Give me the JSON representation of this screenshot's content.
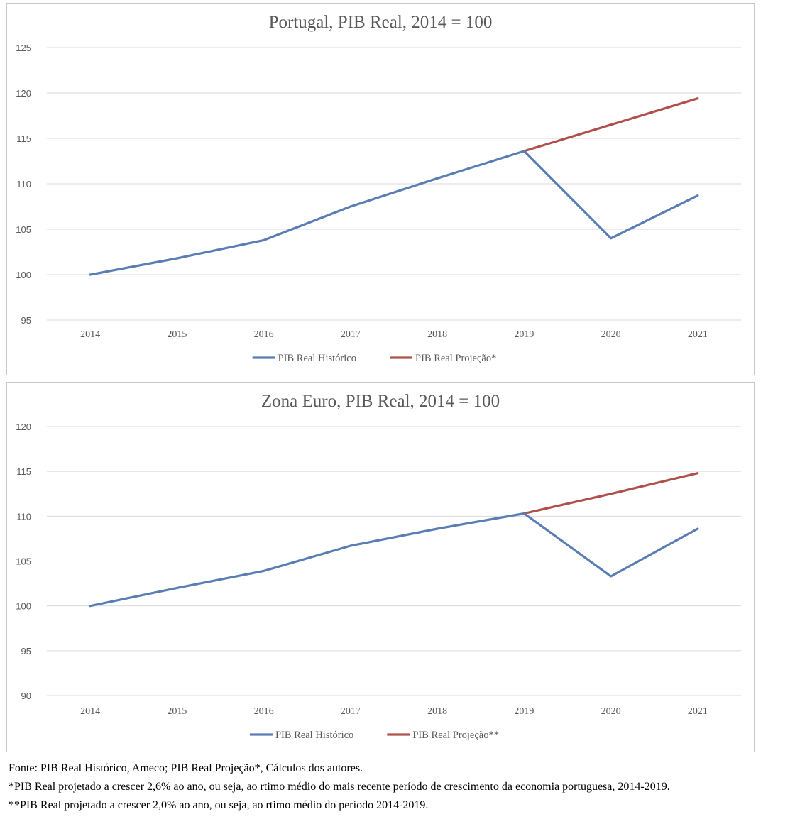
{
  "chart_data": [
    {
      "type": "line",
      "title": "Portugal, PIB Real, 2014 = 100",
      "xlabel": "",
      "ylabel": "",
      "categories": [
        "2014",
        "2015",
        "2016",
        "2017",
        "2018",
        "2019",
        "2020",
        "2021"
      ],
      "ylim": [
        95,
        125
      ],
      "yticks": [
        95,
        100,
        105,
        110,
        115,
        120,
        125
      ],
      "grid": true,
      "legend_position": "bottom",
      "series": [
        {
          "name": "PIB Real Histórico",
          "color": "#5a7db4",
          "values": [
            100,
            101.8,
            103.8,
            107.5,
            110.6,
            113.6,
            104.0,
            108.7
          ]
        },
        {
          "name": "PIB Real Projeção*",
          "color": "#b0504c",
          "values": [
            null,
            null,
            null,
            null,
            null,
            113.6,
            116.5,
            119.4
          ]
        }
      ]
    },
    {
      "type": "line",
      "title": "Zona Euro, PIB Real, 2014 = 100",
      "xlabel": "",
      "ylabel": "",
      "categories": [
        "2014",
        "2015",
        "2016",
        "2017",
        "2018",
        "2019",
        "2020",
        "2021"
      ],
      "ylim": [
        90,
        120
      ],
      "yticks": [
        90,
        95,
        100,
        105,
        110,
        115,
        120
      ],
      "grid": true,
      "legend_position": "bottom",
      "series": [
        {
          "name": "PIB Real Histórico",
          "color": "#5a7db4",
          "values": [
            100,
            102.0,
            103.9,
            106.7,
            108.6,
            110.3,
            103.3,
            108.6
          ]
        },
        {
          "name": "PIB Real Projeção**",
          "color": "#b0504c",
          "values": [
            null,
            null,
            null,
            null,
            null,
            110.3,
            112.5,
            114.8
          ]
        }
      ]
    }
  ],
  "notes": {
    "source": "Fonte: PIB Real Histórico, Ameco; PIB Real Projeção*, Cálculos dos autores.",
    "note1": "*PIB Real projetado a crescer 2,6% ao ano, ou seja, ao rtimo médio do mais recente período de crescimento da economia portuguesa, 2014-2019.",
    "note2": "**PIB Real projetado a crescer 2,0% ao ano, ou seja, ao rtimo médio do período 2014-2019."
  }
}
